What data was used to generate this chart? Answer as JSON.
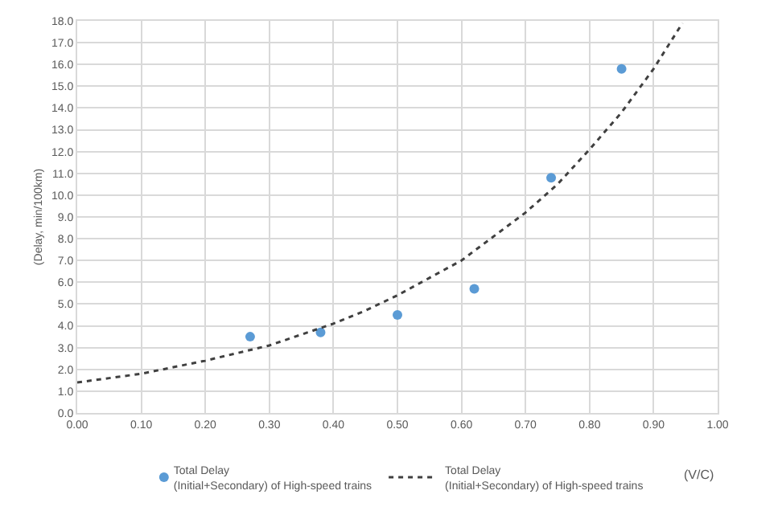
{
  "chart_data": {
    "type": "scatter",
    "ylabel": "(Delay, min/100km)",
    "xlabel": "(V/C)",
    "xlim": [
      0,
      1
    ],
    "ylim": [
      0,
      18
    ],
    "grid": true,
    "legend": "bottom",
    "marker": "circle",
    "xticks": [
      {
        "value": 0,
        "label": "0.00"
      },
      {
        "value": 0.1,
        "label": "0.10"
      },
      {
        "value": 0.2,
        "label": "0.20"
      },
      {
        "value": 0.3,
        "label": "0.30"
      },
      {
        "value": 0.4,
        "label": "0.40"
      },
      {
        "value": 0.5,
        "label": "0.50"
      },
      {
        "value": 0.6,
        "label": "0.60"
      },
      {
        "value": 0.7,
        "label": "0.70"
      },
      {
        "value": 0.8,
        "label": "0.80"
      },
      {
        "value": 0.9,
        "label": "0.90"
      },
      {
        "value": 1,
        "label": "1.00"
      }
    ],
    "yticks": [
      {
        "value": 0,
        "label": "0.0"
      },
      {
        "value": 1,
        "label": "1.0"
      },
      {
        "value": 2,
        "label": "2.0"
      },
      {
        "value": 3,
        "label": "3.0"
      },
      {
        "value": 4,
        "label": "4.0"
      },
      {
        "value": 5,
        "label": "5.0"
      },
      {
        "value": 6,
        "label": "6.0"
      },
      {
        "value": 7,
        "label": "7.0"
      },
      {
        "value": 8,
        "label": "8.0"
      },
      {
        "value": 9,
        "label": "9.0"
      },
      {
        "value": 10,
        "label": "10.0"
      },
      {
        "value": 11,
        "label": "11.0"
      },
      {
        "value": 12,
        "label": "12.0"
      },
      {
        "value": 13,
        "label": "13.0"
      },
      {
        "value": 14,
        "label": "14.0"
      },
      {
        "value": 15,
        "label": "15.0"
      },
      {
        "value": 16,
        "label": "16.0"
      },
      {
        "value": 17,
        "label": "17.0"
      },
      {
        "value": 18,
        "label": "18.0"
      }
    ],
    "series": [
      {
        "name": "Total Delay\n(Initial+Secondary) of High-speed trains",
        "color": "#5b9bd5",
        "x": [
          0.27,
          0.38,
          0.5,
          0.62,
          0.74,
          0.85
        ],
        "values": [
          3.5,
          3.7,
          4.5,
          5.7,
          10.8,
          15.8
        ]
      },
      {
        "name": "Total Delay\n(Initial+Secondary) of High-speed trains",
        "type": "line",
        "color": "#404040",
        "line_style": "dotted",
        "marker": "none",
        "x": [
          0,
          0.05,
          0.1,
          0.15,
          0.2,
          0.25,
          0.3,
          0.35,
          0.4,
          0.45,
          0.5,
          0.55,
          0.6,
          0.65,
          0.7,
          0.75,
          0.8,
          0.85,
          0.9,
          0.945
        ],
        "values": [
          1.4,
          1.6,
          1.8,
          2.1,
          2.4,
          2.75,
          3.1,
          3.6,
          4.1,
          4.7,
          5.4,
          6.2,
          7.0,
          8.1,
          9.2,
          10.5,
          12.1,
          13.8,
          15.8,
          17.9
        ]
      }
    ]
  }
}
